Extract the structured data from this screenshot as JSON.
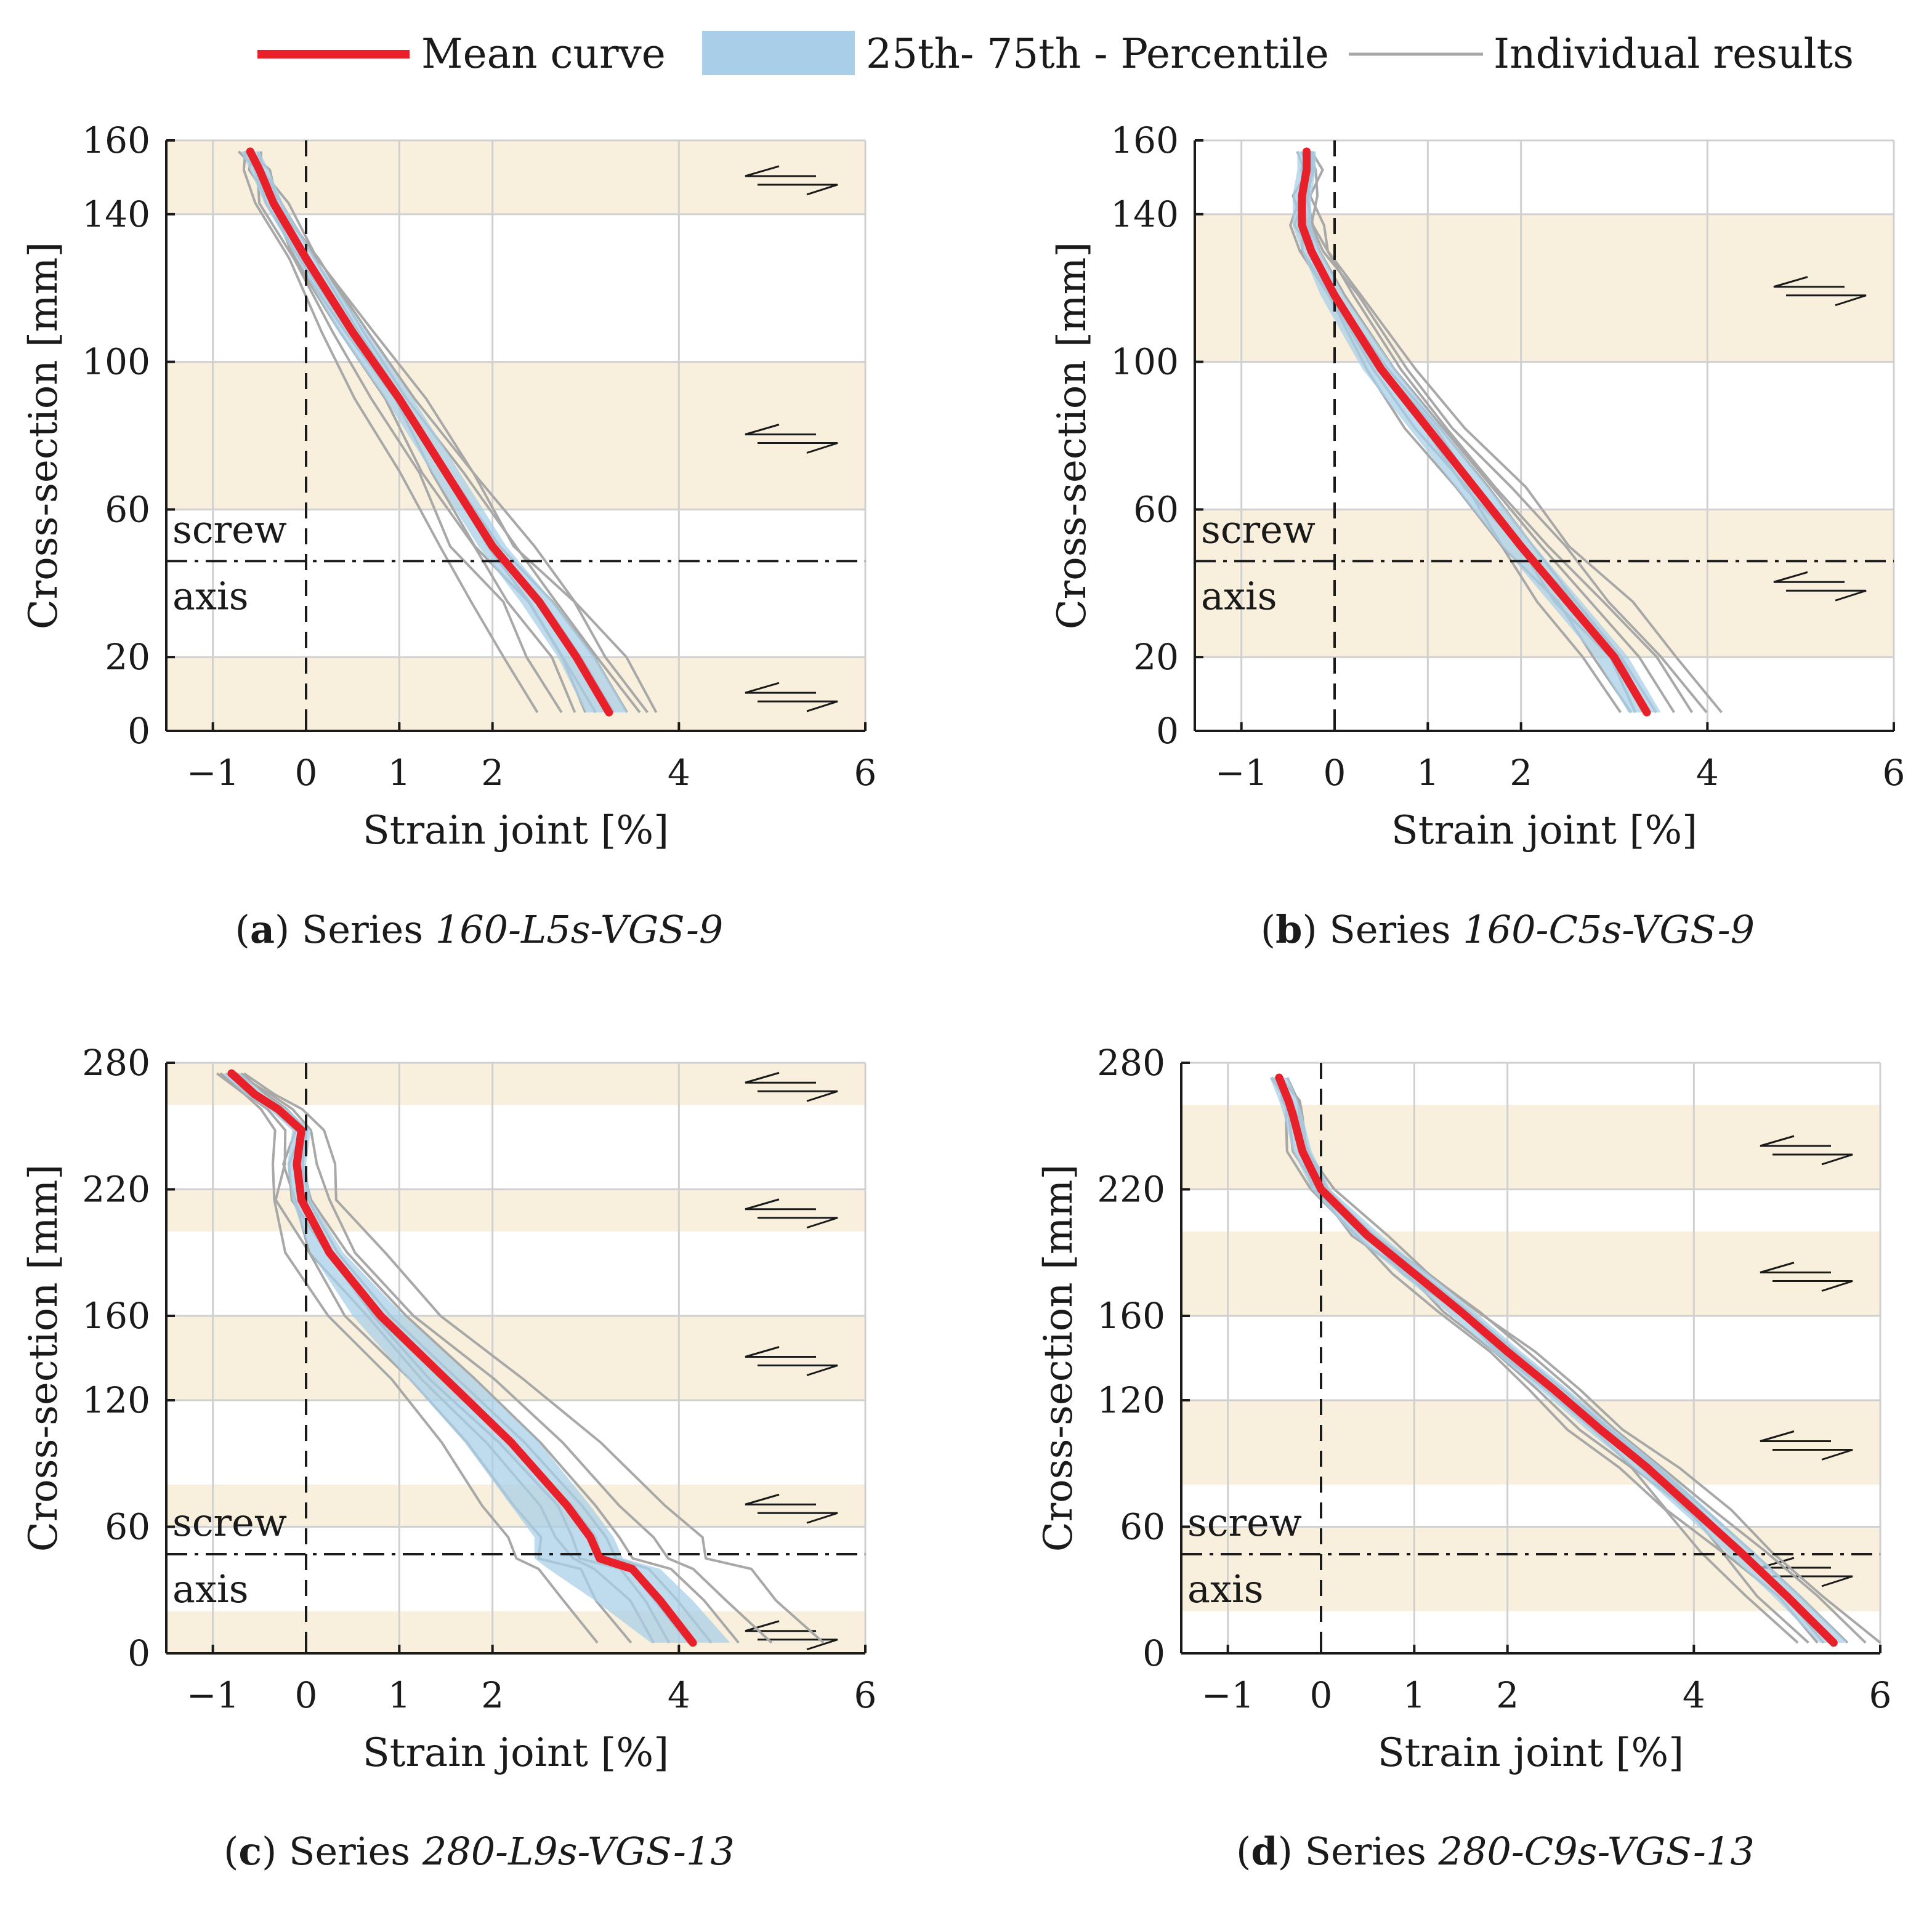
{
  "figure": {
    "legend": {
      "mean": "Mean curve",
      "band": "25th- 75th - Percentile",
      "individual": "Individual results"
    },
    "colors": {
      "mean": "#e8202a",
      "band": "#a9cfe8",
      "individual": "#a8a8a8",
      "shear_band": "#f8f0dc",
      "grid": "#d0d0d0",
      "axis": "#1a1a1a"
    }
  },
  "chart_data": [
    {
      "type": "line",
      "panel_letter": "a",
      "caption_prefix": "Series",
      "series_name": "160-L5s-VGS-9",
      "xlabel": "Strain joint [%]",
      "ylabel": "Cross-section [mm]",
      "xlim": [
        -1.5,
        6
      ],
      "ylim": [
        0,
        160
      ],
      "xticks": [
        -1,
        0,
        1,
        2,
        4,
        6
      ],
      "yticks": [
        0,
        20,
        60,
        100,
        140,
        160
      ],
      "shear_bands": [
        [
          0,
          20
        ],
        [
          60,
          100
        ],
        [
          140,
          160
        ]
      ],
      "screw_axis_y": 46,
      "screw_label": "screw",
      "axis_label": "axis",
      "mean": {
        "x": [
          3.25,
          2.9,
          2.5,
          2.0,
          1.5,
          1.0,
          0.5,
          0.0,
          -0.35,
          -0.5,
          -0.6
        ],
        "y": [
          5,
          20,
          35,
          50,
          70,
          90,
          108,
          128,
          143,
          152,
          157
        ]
      },
      "band": {
        "lower": [
          3.0,
          2.7,
          2.3,
          1.85,
          1.35,
          0.85,
          0.35,
          -0.1,
          -0.45,
          -0.6,
          -0.7
        ],
        "upper": [
          3.45,
          3.1,
          2.65,
          2.15,
          1.65,
          1.15,
          0.65,
          0.1,
          -0.25,
          -0.4,
          -0.5
        ]
      },
      "individual_offsets": [
        -0.85,
        -0.55,
        -0.35,
        -0.2,
        -0.1,
        0.05,
        0.15,
        0.28,
        0.4,
        0.55
      ]
    },
    {
      "type": "line",
      "panel_letter": "b",
      "caption_prefix": "Series",
      "series_name": "160-C5s-VGS-9",
      "xlabel": "Strain joint [%]",
      "ylabel": "Cross-section [mm]",
      "xlim": [
        -1.5,
        6
      ],
      "ylim": [
        0,
        160
      ],
      "xticks": [
        -1,
        0,
        1,
        2,
        4,
        6
      ],
      "yticks": [
        0,
        20,
        60,
        100,
        140,
        160
      ],
      "shear_bands": [
        [
          20,
          60
        ],
        [
          100,
          140
        ]
      ],
      "screw_axis_y": 46,
      "screw_label": "screw",
      "axis_label": "axis",
      "mean": {
        "x": [
          3.35,
          3.0,
          2.5,
          2.0,
          1.5,
          1.0,
          0.5,
          0.0,
          -0.25,
          -0.35,
          -0.35,
          -0.3,
          -0.3
        ],
        "y": [
          5,
          20,
          35,
          50,
          66,
          82,
          98,
          118,
          130,
          137,
          145,
          152,
          157
        ]
      },
      "band": {
        "lower": [
          3.15,
          2.8,
          2.3,
          1.8,
          1.3,
          0.8,
          0.3,
          -0.15,
          -0.35,
          -0.45,
          -0.45,
          -0.4,
          -0.4
        ],
        "upper": [
          3.5,
          3.15,
          2.65,
          2.15,
          1.65,
          1.15,
          0.65,
          0.1,
          -0.15,
          -0.25,
          -0.25,
          -0.2,
          -0.2
        ]
      },
      "individual_offsets": [
        -0.35,
        -0.2,
        -0.1,
        0.05,
        0.15,
        0.3,
        0.45,
        0.6,
        0.8
      ]
    },
    {
      "type": "line",
      "panel_letter": "c",
      "caption_prefix": "Series",
      "series_name": "280-L9s-VGS-13",
      "xlabel": "Strain joint [%]",
      "ylabel": "Cross-section [mm]",
      "xlim": [
        -1.5,
        6
      ],
      "ylim": [
        0,
        280
      ],
      "xticks": [
        -1,
        0,
        1,
        2,
        4,
        6
      ],
      "yticks": [
        0,
        60,
        120,
        160,
        220,
        280
      ],
      "shear_bands": [
        [
          0,
          20
        ],
        [
          60,
          80
        ],
        [
          120,
          160
        ],
        [
          200,
          220
        ],
        [
          260,
          280
        ]
      ],
      "screw_axis_y": 47,
      "screw_label": "screw",
      "axis_label": "axis",
      "mean": {
        "x": [
          4.15,
          3.8,
          3.5,
          3.15,
          3.05,
          2.8,
          2.2,
          1.5,
          0.8,
          0.25,
          -0.05,
          -0.1,
          -0.05,
          -0.3,
          -0.55,
          -0.8
        ],
        "y": [
          5,
          25,
          40,
          45,
          55,
          70,
          100,
          130,
          160,
          190,
          215,
          232,
          248,
          258,
          265,
          275
        ]
      },
      "band": {
        "lower": [
          3.7,
          3.1,
          2.6,
          2.45,
          2.45,
          2.2,
          1.7,
          1.1,
          0.5,
          0.05,
          -0.15,
          -0.2,
          -0.15,
          -0.4,
          -0.65,
          -0.9
        ],
        "upper": [
          4.55,
          4.15,
          3.8,
          3.4,
          3.3,
          3.05,
          2.5,
          1.8,
          1.05,
          0.4,
          0.05,
          0.0,
          0.05,
          -0.2,
          -0.45,
          -0.7
        ]
      },
      "individual_offsets": [
        -1.1,
        -0.7,
        -0.4,
        -0.2,
        0.0,
        0.2,
        0.45,
        0.8,
        1.4
      ]
    },
    {
      "type": "line",
      "panel_letter": "d",
      "caption_prefix": "Series",
      "series_name": "280-C9s-VGS-13",
      "xlabel": "Strain joint [%]",
      "ylabel": "Cross-section [mm]",
      "xlim": [
        -1.5,
        6
      ],
      "ylim": [
        0,
        280
      ],
      "xticks": [
        -1,
        0,
        1,
        2,
        4,
        6
      ],
      "yticks": [
        0,
        60,
        120,
        160,
        220,
        280
      ],
      "shear_bands": [
        [
          20,
          60
        ],
        [
          80,
          120
        ],
        [
          160,
          200
        ],
        [
          220,
          260
        ]
      ],
      "screw_axis_y": 47,
      "screw_label": "screw",
      "axis_label": "axis",
      "mean": {
        "x": [
          5.5,
          5.0,
          4.5,
          4.0,
          3.5,
          3.0,
          2.5,
          2.0,
          1.5,
          1.0,
          0.5,
          0.0,
          -0.2,
          -0.3,
          -0.35,
          -0.45
        ],
        "y": [
          5,
          27,
          48,
          68,
          88,
          106,
          125,
          143,
          162,
          180,
          198,
          220,
          238,
          255,
          262,
          273
        ]
      },
      "band": {
        "lower": [
          5.35,
          4.85,
          4.35,
          3.85,
          3.35,
          2.85,
          2.35,
          1.85,
          1.35,
          0.85,
          0.35,
          -0.1,
          -0.3,
          -0.4,
          -0.45,
          -0.55
        ],
        "upper": [
          5.65,
          5.15,
          4.65,
          4.15,
          3.65,
          3.15,
          2.65,
          2.15,
          1.65,
          1.15,
          0.65,
          0.1,
          -0.1,
          -0.2,
          -0.25,
          -0.35
        ]
      },
      "individual_offsets": [
        -0.45,
        -0.3,
        -0.15,
        -0.05,
        0.05,
        0.15,
        0.3,
        0.45
      ]
    }
  ]
}
